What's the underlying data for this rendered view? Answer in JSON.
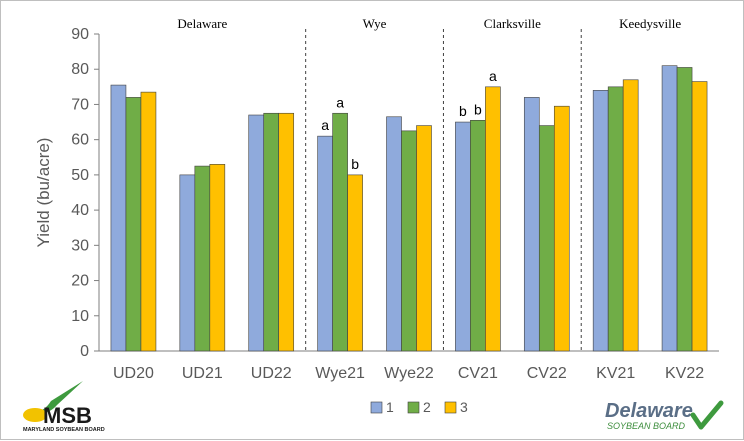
{
  "chart_data": {
    "type": "bar",
    "categories": [
      "UD20",
      "UD21",
      "UD22",
      "Wye21",
      "Wye22",
      "CV21",
      "CV22",
      "KV21",
      "KV22"
    ],
    "series": [
      {
        "name": "1",
        "color": "#8faadc",
        "values": [
          75.5,
          50.0,
          67.0,
          61.0,
          66.5,
          65.0,
          72.0,
          74.0,
          81.0
        ]
      },
      {
        "name": "2",
        "color": "#70ad47",
        "values": [
          72.0,
          52.5,
          67.5,
          67.5,
          62.5,
          65.5,
          64.0,
          75.0,
          80.5
        ]
      },
      {
        "name": "3",
        "color": "#ffc000",
        "values": [
          73.5,
          53.0,
          67.5,
          50.0,
          64.0,
          75.0,
          69.5,
          77.0,
          76.5
        ]
      }
    ],
    "regions": [
      {
        "label": "Delaware",
        "categories": [
          "UD20",
          "UD21",
          "UD22"
        ]
      },
      {
        "label": "Wye",
        "categories": [
          "Wye21",
          "Wye22"
        ]
      },
      {
        "label": "Clarksville",
        "categories": [
          "CV21",
          "CV22"
        ]
      },
      {
        "label": "Keedysville",
        "categories": [
          "KV21",
          "KV22"
        ]
      }
    ],
    "annotations": [
      {
        "category": "Wye21",
        "series": "1",
        "text": "a"
      },
      {
        "category": "Wye21",
        "series": "2",
        "text": "a"
      },
      {
        "category": "Wye21",
        "series": "3",
        "text": "b"
      },
      {
        "category": "CV21",
        "series": "1",
        "text": "b"
      },
      {
        "category": "CV21",
        "series": "2",
        "text": "b"
      },
      {
        "category": "CV21",
        "series": "3",
        "text": "a"
      }
    ],
    "title": "",
    "xlabel": "",
    "ylabel": "Yield (bu/acre)",
    "ylim": [
      0,
      90
    ],
    "yticks": [
      0,
      10,
      20,
      30,
      40,
      50,
      60,
      70,
      80,
      90
    ],
    "grid": false,
    "legend_position": "bottom-center"
  },
  "logos": {
    "left_main": "MSB",
    "left_sub": "MARYLAND SOYBEAN BOARD",
    "right_main": "Delaware",
    "right_sub": "SOYBEAN BOARD"
  }
}
